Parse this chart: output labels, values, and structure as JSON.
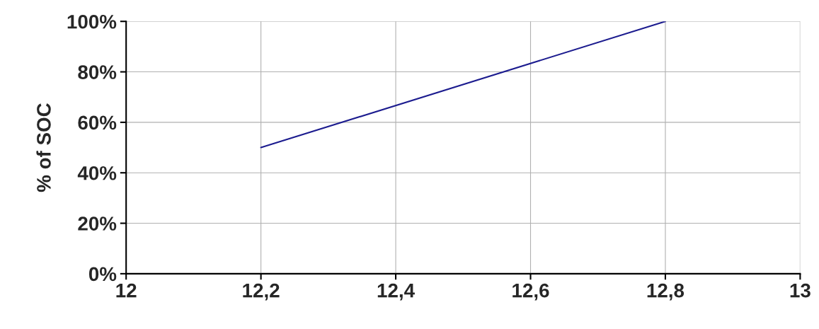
{
  "chart_data": {
    "type": "line",
    "ylabel": "% of SOC",
    "x": [
      12.2,
      12.8
    ],
    "series": [
      {
        "color": "#1c1c8f",
        "values": [
          50,
          100
        ]
      }
    ],
    "xlim": [
      12,
      13
    ],
    "xticks": [
      12,
      {
        "value": 12.2,
        "label": "12,2"
      },
      {
        "value": 12.4,
        "label": "12,4"
      },
      {
        "value": 12.6,
        "label": "12,6"
      },
      {
        "value": 12.8,
        "label": "12,8"
      },
      13
    ],
    "ylim": [
      0,
      100
    ],
    "yticks": [
      {
        "value": 0,
        "label": "0%"
      },
      {
        "value": 20,
        "label": "20%"
      },
      {
        "value": 40,
        "label": "40%"
      },
      {
        "value": 60,
        "label": "60%"
      },
      {
        "value": 80,
        "label": "80%"
      },
      {
        "value": 100,
        "label": "100%"
      }
    ],
    "grid": true,
    "marker": "none",
    "line_style": "solid",
    "legend": false
  }
}
